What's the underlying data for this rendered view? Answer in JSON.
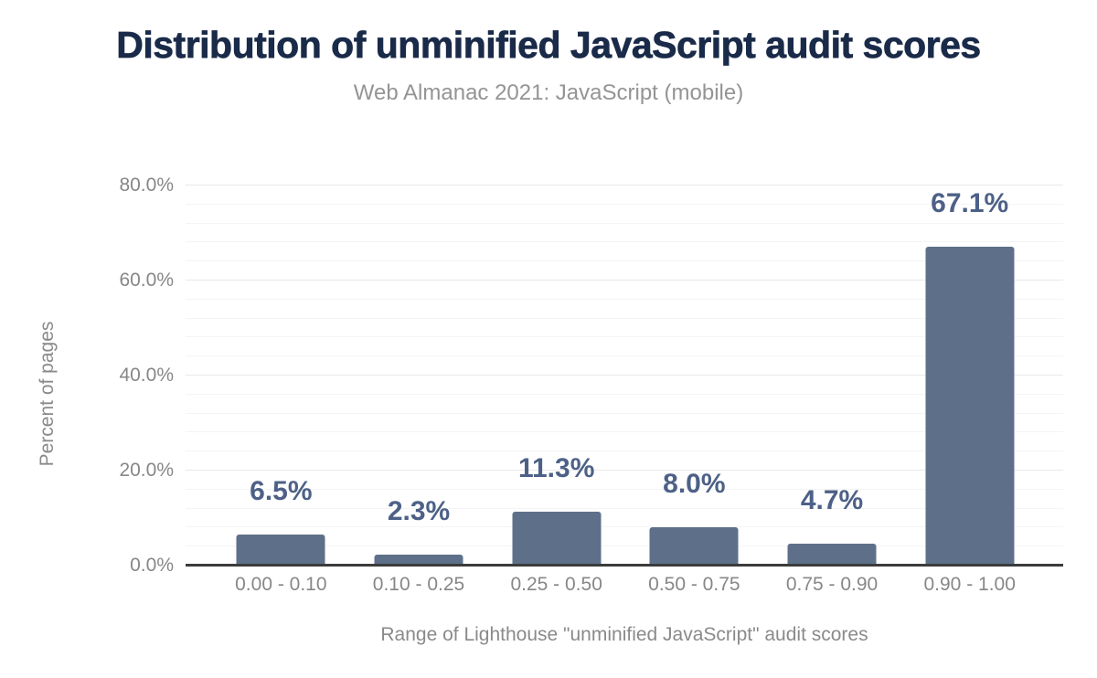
{
  "chart_data": {
    "type": "bar",
    "title": "Distribution of unminified JavaScript audit scores",
    "subtitle": "Web Almanac 2021: JavaScript (mobile)",
    "categories": [
      "0.00 - 0.10",
      "0.10 - 0.25",
      "0.25 - 0.50",
      "0.50 - 0.75",
      "0.75 - 0.90",
      "0.90 - 1.00"
    ],
    "values": [
      6.5,
      2.3,
      11.3,
      8.0,
      4.7,
      67.1
    ],
    "value_labels": [
      "6.5%",
      "2.3%",
      "11.3%",
      "8.0%",
      "4.7%",
      "67.1%"
    ],
    "xlabel": "Range of Lighthouse \"unminified JavaScript\" audit scores",
    "ylabel": "Percent of pages",
    "ylim": [
      0,
      85
    ],
    "y_ticks": [
      {
        "value": 0,
        "label": "0.0%"
      },
      {
        "value": 20,
        "label": "20.0%"
      },
      {
        "value": 40,
        "label": "40.0%"
      },
      {
        "value": 60,
        "label": "60.0%"
      },
      {
        "value": 80,
        "label": "80.0%"
      }
    ],
    "grid": {
      "visible": true,
      "major_interval": 20,
      "minor_interval": 4,
      "max_line": 80
    },
    "legend": "none",
    "colors": {
      "bar": "#5e7089",
      "value_label": "#4d6187",
      "title": "#1a2b49",
      "subtitle": "#949494",
      "tick": "#878787",
      "axis_title": "#8a8a8a",
      "grid_major": "#e9e9e9",
      "grid_minor": "#f4f4f4",
      "axis_line": "#3c3c3c",
      "background": "#ffffff"
    }
  }
}
